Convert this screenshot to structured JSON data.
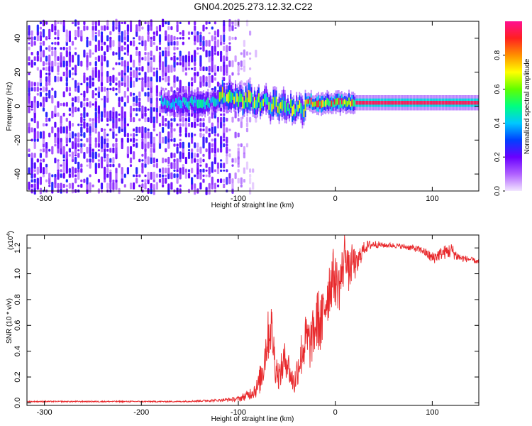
{
  "title": "GN04.2025.273.12.32.C22",
  "colors": {
    "snr_line": "#e8292c",
    "axis": "#000000",
    "background": "#ffffff"
  },
  "chart_data": [
    {
      "type": "heatmap",
      "name": "spectrogram",
      "xlabel": "Height of straight line (km)",
      "ylabel": "Frequency (Hz)",
      "xlim": [
        -318,
        148
      ],
      "ylim": [
        -50,
        50
      ],
      "xticks": [
        -300,
        -200,
        -100,
        0,
        100
      ],
      "yticks": [
        -40,
        -20,
        0,
        20,
        40
      ],
      "colorbar": {
        "label": "Normalized spectral amplitude",
        "range": [
          0.0,
          1.0
        ],
        "ticks": [
          0.0,
          0.2,
          0.4,
          0.6,
          0.8
        ],
        "tick_labels": [
          "0.0",
          "0.2",
          "0.4",
          "0.6",
          "0.8"
        ],
        "colormap": [
          "#f2e6ff",
          "#b060ff",
          "#6a00ff",
          "#0040ff",
          "#00c8ff",
          "#00ff80",
          "#60ff00",
          "#ffff00",
          "#ff9000",
          "#ff2020",
          "#ff1090"
        ]
      },
      "features": [
        {
          "region": "broadband noise",
          "x_range": [
            -318,
            -100
          ],
          "freq_range": [
            -50,
            50
          ],
          "amplitude": 0.15
        },
        {
          "region": "narrowband signal",
          "x_range": [
            -180,
            148
          ],
          "freq_center": 2,
          "amplitude": 0.95
        }
      ]
    },
    {
      "type": "line",
      "name": "snr",
      "xlabel": "Height of straight line (km)",
      "ylabel": "SNR (10 * v/v)",
      "multiplier": "(x10",
      "multiplier_exp": "4",
      "multiplier_close": ")",
      "xlim": [
        -318,
        148
      ],
      "ylim": [
        -0.02,
        1.3
      ],
      "xticks": [
        -300,
        -200,
        -100,
        0,
        100
      ],
      "yticks": [
        0.0,
        0.2,
        0.4,
        0.6,
        0.8,
        1.0,
        1.2
      ],
      "series": [
        {
          "name": "SNR",
          "x": [
            -318,
            -300,
            -250,
            -200,
            -160,
            -140,
            -120,
            -100,
            -90,
            -80,
            -75,
            -70,
            -66,
            -62,
            -58,
            -54,
            -50,
            -46,
            -42,
            -38,
            -34,
            -30,
            -26,
            -22,
            -18,
            -14,
            -10,
            -6,
            -2,
            0,
            4,
            8,
            10,
            14,
            18,
            22,
            26,
            30,
            35,
            40,
            50,
            60,
            70,
            80,
            90,
            95,
            100,
            105,
            110,
            115,
            120,
            125,
            130,
            140,
            148
          ],
          "values": [
            0.01,
            0.01,
            0.01,
            0.01,
            0.01,
            0.015,
            0.02,
            0.03,
            0.06,
            0.12,
            0.25,
            0.5,
            0.6,
            0.3,
            0.2,
            0.3,
            0.35,
            0.2,
            0.15,
            0.3,
            0.4,
            0.5,
            0.45,
            0.55,
            0.65,
            0.6,
            0.8,
            0.9,
            1.0,
            0.95,
            0.9,
            1.05,
            1.2,
            1.0,
            1.1,
            1.05,
            1.15,
            1.2,
            1.22,
            1.23,
            1.22,
            1.22,
            1.21,
            1.2,
            1.18,
            1.15,
            1.12,
            1.14,
            1.16,
            1.17,
            1.18,
            1.14,
            1.12,
            1.11,
            1.09
          ],
          "noise": [
            0.005,
            0.005,
            0.005,
            0.005,
            0.005,
            0.008,
            0.01,
            0.02,
            0.04,
            0.08,
            0.15,
            0.2,
            0.2,
            0.15,
            0.1,
            0.15,
            0.15,
            0.1,
            0.1,
            0.15,
            0.2,
            0.2,
            0.2,
            0.2,
            0.25,
            0.25,
            0.25,
            0.25,
            0.2,
            0.2,
            0.2,
            0.2,
            0.15,
            0.15,
            0.15,
            0.1,
            0.08,
            0.05,
            0.04,
            0.03,
            0.02,
            0.02,
            0.02,
            0.025,
            0.03,
            0.04,
            0.05,
            0.05,
            0.05,
            0.06,
            0.06,
            0.04,
            0.03,
            0.02,
            0.02
          ]
        }
      ]
    }
  ]
}
